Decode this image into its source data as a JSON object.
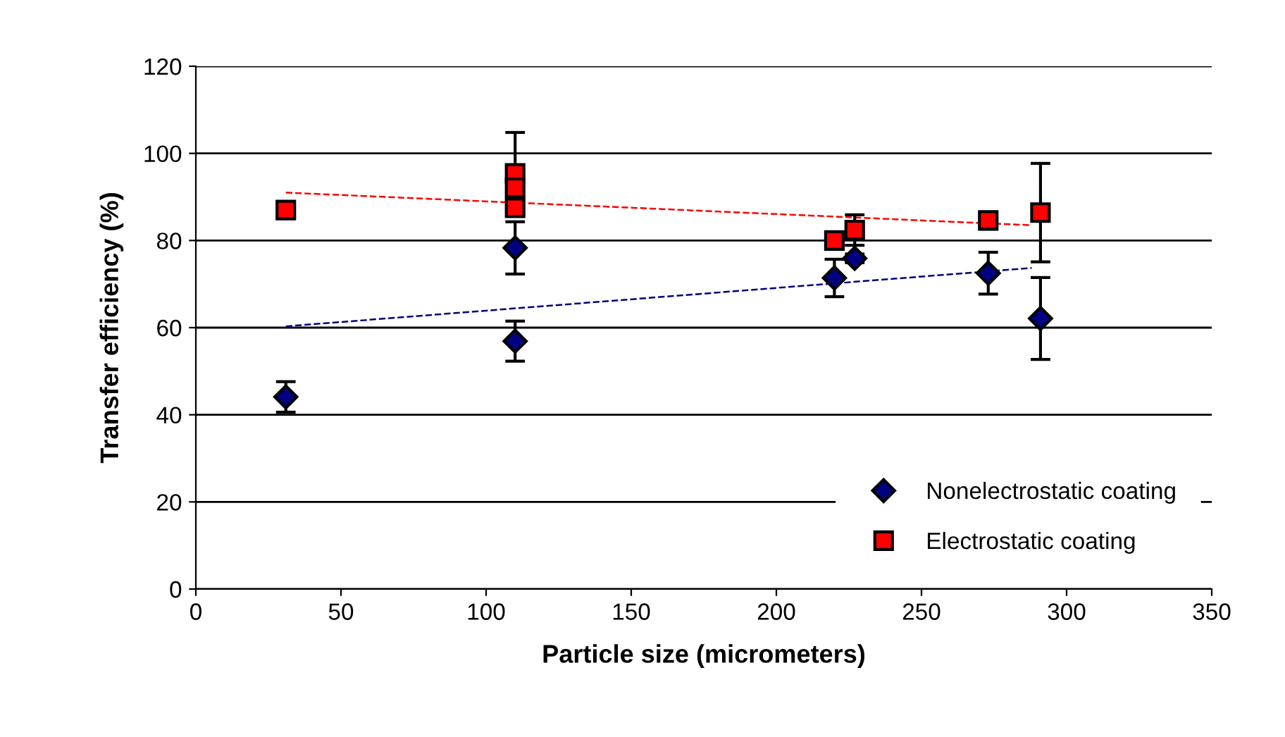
{
  "chart_data": {
    "type": "scatter",
    "xlabel": "Particle size (micrometers)",
    "ylabel": "Transfer efficiency (%)",
    "xlim": [
      0,
      350
    ],
    "xticks": [
      0,
      50,
      100,
      150,
      200,
      250,
      300,
      350
    ],
    "ylim": [
      0,
      120
    ],
    "yticks": [
      0,
      20,
      40,
      60,
      80,
      100,
      120
    ],
    "grid": "y",
    "legend": "bottom right",
    "series": [
      {
        "name": "Nonelectrostatic coating",
        "color": "#000080",
        "marker": "diamond",
        "x": [
          31,
          110,
          110,
          220,
          227,
          273,
          291
        ],
        "values": [
          44.1,
          78.3,
          56.9,
          71.4,
          75.9,
          72.5,
          62.1
        ],
        "errors": [
          3.5,
          6,
          4.6,
          4.3,
          1,
          4.8,
          9.4
        ]
      },
      {
        "name": "Electrostatic coating",
        "color": "#ff0000",
        "marker": "square",
        "x": [
          31,
          110,
          110,
          110,
          220,
          227,
          273,
          291
        ],
        "values": [
          87.0,
          95.4,
          92.1,
          87.5,
          80.0,
          82.4,
          84.6,
          86.4
        ],
        "errors": [
          null,
          9.4,
          null,
          null,
          null,
          3.5,
          null,
          11.3
        ]
      },
      {
        "type": "line",
        "color": "#000080",
        "line_style": "dashed",
        "marker": "none",
        "x": [
          31,
          288
        ],
        "values": [
          60.3,
          73.7
        ]
      },
      {
        "type": "line",
        "color": "#ff0000",
        "line_style": "dashed",
        "marker": "none",
        "x": [
          31,
          288
        ],
        "values": [
          91.0,
          83.5
        ]
      }
    ]
  }
}
